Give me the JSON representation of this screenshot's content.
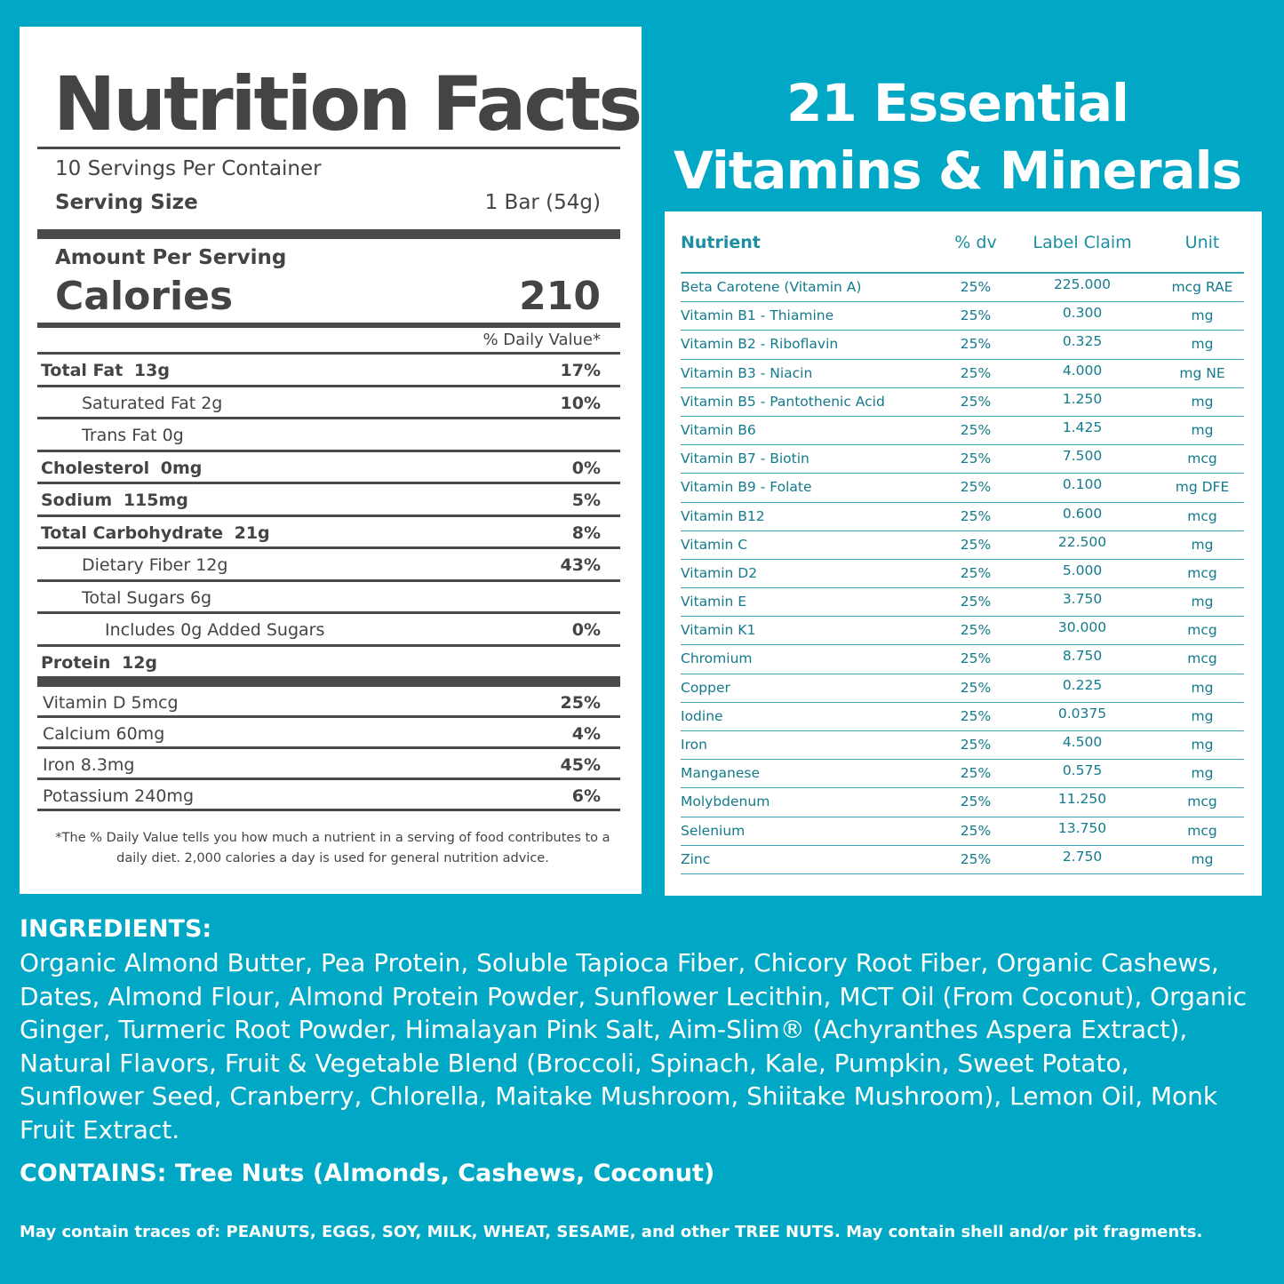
{
  "nutrition_facts": {
    "title": "Nutrition Facts",
    "servings": "10 Servings Per Container",
    "serving_size_label": "Serving Size",
    "serving_size": "1 Bar (54g)",
    "amount_per_serving": "Amount Per Serving",
    "calories_label": "Calories",
    "calories": "210",
    "daily_value_header": "% Daily Value*",
    "rows": [
      {
        "name": "Total Fat",
        "amount": "13g",
        "dv": "17%"
      },
      {
        "name": "Saturated Fat 2g",
        "dv": "10%"
      },
      {
        "name": "Trans Fat 0g"
      },
      {
        "name": "Cholesterol",
        "amount": "0mg",
        "dv": "0%"
      },
      {
        "name": "Sodium",
        "amount": "115mg",
        "dv": "5%"
      },
      {
        "name": "Total Carbohydrate",
        "amount": "21g",
        "dv": "8%"
      },
      {
        "name": "Dietary Fiber 12g",
        "dv": "43%"
      },
      {
        "name": "Total Sugars 6g"
      },
      {
        "name": "Includes 0g Added Sugars",
        "dv": "0%"
      },
      {
        "name": "Protein",
        "amount": "12g"
      }
    ],
    "vitamins": [
      {
        "name": "Vitamin D 5mcg",
        "dv": "25%"
      },
      {
        "name": "Calcium 60mg",
        "dv": "4%"
      },
      {
        "name": "Iron 8.3mg",
        "dv": "45%"
      },
      {
        "name": "Potassium 240mg",
        "dv": "6%"
      }
    ],
    "footnote": "*The % Daily Value tells you how much a nutrient in a serving of food contributes to a daily diet. 2,000 calories a day is used for general nutrition advice."
  },
  "vitamins_panel": {
    "title_line1": "21 Essential",
    "title_line2": "Vitamins & Minerals",
    "headers": [
      "Nutrient",
      "% dv",
      "Label Claim",
      "Unit"
    ],
    "rows": [
      [
        "Beta Carotene (Vitamin A)",
        "25%",
        "225.000",
        "mcg RAE"
      ],
      [
        "Vitamin B1 - Thiamine",
        "25%",
        "0.300",
        "mg"
      ],
      [
        "Vitamin B2 - Riboflavin",
        "25%",
        "0.325",
        "mg"
      ],
      [
        "Vitamin B3 - Niacin",
        "25%",
        "4.000",
        "mg NE"
      ],
      [
        "Vitamin B5 - Pantothenic Acid",
        "25%",
        "1.250",
        "mg"
      ],
      [
        "Vitamin B6",
        "25%",
        "1.425",
        "mg"
      ],
      [
        "Vitamin B7 - Biotin",
        "25%",
        "7.500",
        "mcg"
      ],
      [
        "Vitamin B9 - Folate",
        "25%",
        "0.100",
        "mg DFE"
      ],
      [
        "Vitamin B12",
        "25%",
        "0.600",
        "mcg"
      ],
      [
        "Vitamin C",
        "25%",
        "22.500",
        "mg"
      ],
      [
        "Vitamin D2",
        "25%",
        "5.000",
        "mcg"
      ],
      [
        "Vitamin E",
        "25%",
        "3.750",
        "mg"
      ],
      [
        "Vitamin K1",
        "25%",
        "30.000",
        "mcg"
      ],
      [
        "Chromium",
        "25%",
        "8.750",
        "mcg"
      ],
      [
        "Copper",
        "25%",
        "0.225",
        "mg"
      ],
      [
        "Iodine",
        "25%",
        "0.0375",
        "mg"
      ],
      [
        "Iron",
        "25%",
        "4.500",
        "mg"
      ],
      [
        "Manganese",
        "25%",
        "0.575",
        "mg"
      ],
      [
        "Molybdenum",
        "25%",
        "11.250",
        "mcg"
      ],
      [
        "Selenium",
        "25%",
        "13.750",
        "mcg"
      ],
      [
        "Zinc",
        "25%",
        "2.750",
        "mg"
      ]
    ]
  },
  "ingredients": {
    "label": "INGREDIENTS:",
    "text": "Organic Almond Butter, Pea Protein, Soluble Tapioca Fiber, Chicory Root Fiber, Organic Cashews, Dates, Almond Flour, Almond Protein Powder, Sunflower Lecithin, MCT Oil (From Coconut), Organic Ginger, Turmeric Root Powder, Himalayan Pink Salt, Aim-Slim® (Achyranthes Aspera Extract), Natural Flavors, Fruit & Vegetable Blend (Broccoli, Spinach, Kale, Pumpkin, Sweet Potato, Sunflower Seed, Cranberry, Chlorella, Maitake Mushroom, Shiitake Mushroom), Lemon Oil, Monk Fruit Extract.",
    "contains": "CONTAINS: Tree Nuts (Almonds, Cashews, Coconut)",
    "traces": "May contain traces of: PEANUTS, EGGS, SOY, MILK, WHEAT, SESAME, and other TREE NUTS. May contain shell and/or pit fragments."
  }
}
